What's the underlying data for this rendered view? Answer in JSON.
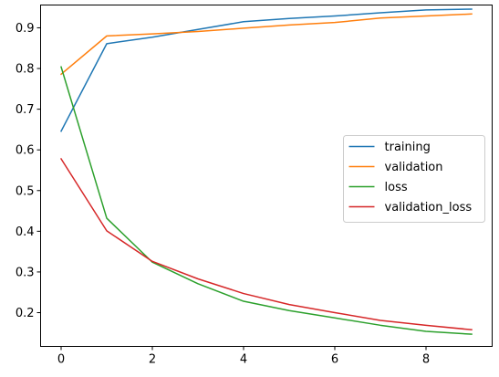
{
  "chart_data": {
    "type": "line",
    "title": "",
    "xlabel": "",
    "ylabel": "",
    "x": [
      0,
      1,
      2,
      3,
      4,
      5,
      6,
      7,
      8,
      9
    ],
    "xlim": [
      -0.45,
      9.45
    ],
    "ylim": [
      0.117,
      0.956
    ],
    "x_ticks": [
      0,
      2,
      4,
      6,
      8
    ],
    "x_tick_labels": [
      "0",
      "2",
      "4",
      "6",
      "8"
    ],
    "y_ticks": [
      0.2,
      0.3,
      0.4,
      0.5,
      0.6,
      0.7,
      0.8,
      0.9
    ],
    "y_tick_labels": [
      "0.2",
      "0.3",
      "0.4",
      "0.5",
      "0.6",
      "0.7",
      "0.8",
      "0.9"
    ],
    "grid": false,
    "legend_position": "center-right",
    "series": [
      {
        "name": "training",
        "color": "#1f77b4",
        "values": [
          0.646,
          0.861,
          0.877,
          0.896,
          0.915,
          0.923,
          0.929,
          0.937,
          0.944,
          0.946
        ]
      },
      {
        "name": "validation",
        "color": "#ff7f0e",
        "values": [
          0.786,
          0.88,
          0.885,
          0.891,
          0.899,
          0.907,
          0.913,
          0.924,
          0.929,
          0.934
        ]
      },
      {
        "name": "loss",
        "color": "#2ca02c",
        "values": [
          0.804,
          0.432,
          0.324,
          0.271,
          0.228,
          0.205,
          0.187,
          0.169,
          0.154,
          0.147
        ]
      },
      {
        "name": "validation_loss",
        "color": "#d62728",
        "values": [
          0.578,
          0.401,
          0.326,
          0.283,
          0.247,
          0.22,
          0.2,
          0.181,
          0.169,
          0.158
        ]
      }
    ]
  }
}
